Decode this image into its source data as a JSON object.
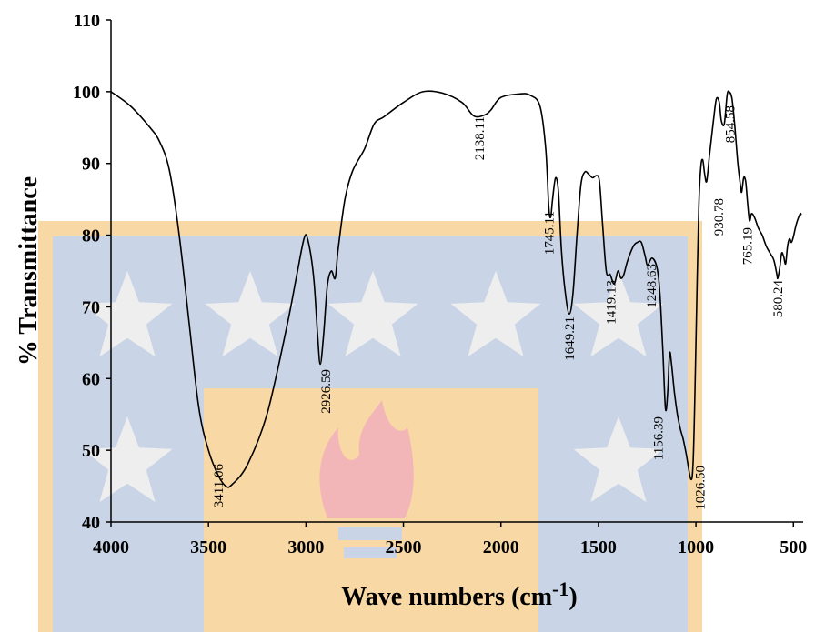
{
  "chart_data": {
    "type": "line",
    "title": "",
    "xlabel": "Wave numbers (cm",
    "xlabel_sup": "-1",
    "xlabel_end": ")",
    "ylabel": "% Transmittance",
    "xlim": [
      4000,
      450
    ],
    "ylim": [
      40,
      110
    ],
    "x_reversed": true,
    "xticks": [
      4000,
      3500,
      3000,
      2500,
      2000,
      1500,
      1000,
      500
    ],
    "yticks": [
      40,
      50,
      60,
      70,
      80,
      90,
      100,
      110
    ],
    "grid": false,
    "legend": "none",
    "line_color": "#000000",
    "series": [
      {
        "points": [
          [
            4000,
            100
          ],
          [
            3900,
            98
          ],
          [
            3800,
            95
          ],
          [
            3750,
            93
          ],
          [
            3700,
            89
          ],
          [
            3650,
            80
          ],
          [
            3600,
            68
          ],
          [
            3550,
            56
          ],
          [
            3500,
            50
          ],
          [
            3450,
            46.5
          ],
          [
            3411,
            45
          ],
          [
            3380,
            45.2
          ],
          [
            3300,
            48
          ],
          [
            3200,
            55
          ],
          [
            3100,
            67
          ],
          [
            3050,
            74
          ],
          [
            3010,
            79.5
          ],
          [
            2990,
            79.3
          ],
          [
            2960,
            74
          ],
          [
            2940,
            66
          ],
          [
            2926.59,
            62
          ],
          [
            2910,
            66
          ],
          [
            2890,
            73
          ],
          [
            2870,
            75
          ],
          [
            2850,
            74
          ],
          [
            2835,
            78
          ],
          [
            2800,
            85
          ],
          [
            2760,
            89
          ],
          [
            2700,
            92
          ],
          [
            2650,
            95.5
          ],
          [
            2600,
            96.5
          ],
          [
            2500,
            98.5
          ],
          [
            2400,
            100
          ],
          [
            2300,
            99.8
          ],
          [
            2200,
            98.5
          ],
          [
            2138.11,
            96.6
          ],
          [
            2080,
            96.8
          ],
          [
            2050,
            97.5
          ],
          [
            2000,
            99.2
          ],
          [
            1900,
            99.7
          ],
          [
            1850,
            99.5
          ],
          [
            1800,
            98
          ],
          [
            1770,
            92
          ],
          [
            1755,
            84
          ],
          [
            1745.11,
            82.5
          ],
          [
            1735,
            85
          ],
          [
            1720,
            88
          ],
          [
            1705,
            86
          ],
          [
            1690,
            78
          ],
          [
            1670,
            72
          ],
          [
            1649.21,
            69
          ],
          [
            1630,
            72
          ],
          [
            1610,
            80
          ],
          [
            1590,
            87
          ],
          [
            1570,
            88.8
          ],
          [
            1550,
            88.5
          ],
          [
            1530,
            88
          ],
          [
            1510,
            88.3
          ],
          [
            1495,
            87.5
          ],
          [
            1480,
            82
          ],
          [
            1460,
            75
          ],
          [
            1440,
            74.5
          ],
          [
            1419.13,
            73.2
          ],
          [
            1400,
            75
          ],
          [
            1385,
            74
          ],
          [
            1370,
            74.5
          ],
          [
            1350,
            76.5
          ],
          [
            1320,
            78.5
          ],
          [
            1300,
            79
          ],
          [
            1280,
            79
          ],
          [
            1260,
            77
          ],
          [
            1248.63,
            75.8
          ],
          [
            1225,
            76.8
          ],
          [
            1200,
            75.5
          ],
          [
            1185,
            72
          ],
          [
            1170,
            64
          ],
          [
            1156.39,
            55.8
          ],
          [
            1145,
            58
          ],
          [
            1135,
            63.5
          ],
          [
            1125,
            62
          ],
          [
            1110,
            58
          ],
          [
            1095,
            55
          ],
          [
            1080,
            53
          ],
          [
            1065,
            51.5
          ],
          [
            1050,
            49.5
          ],
          [
            1026.5,
            46
          ],
          [
            1015,
            48
          ],
          [
            1005,
            58
          ],
          [
            995,
            72
          ],
          [
            985,
            84
          ],
          [
            975,
            89.5
          ],
          [
            965,
            90.5
          ],
          [
            955,
            88.5
          ],
          [
            945,
            87.5
          ],
          [
            930.78,
            91
          ],
          [
            910,
            96
          ],
          [
            895,
            99
          ],
          [
            880,
            98.5
          ],
          [
            870,
            96
          ],
          [
            854.58,
            95.5
          ],
          [
            840,
            99.5
          ],
          [
            830,
            100
          ],
          [
            815,
            99
          ],
          [
            800,
            95
          ],
          [
            785,
            90
          ],
          [
            772,
            87
          ],
          [
            765.19,
            86
          ],
          [
            755,
            88
          ],
          [
            745,
            87.5
          ],
          [
            735,
            84.5
          ],
          [
            725,
            82
          ],
          [
            715,
            83
          ],
          [
            700,
            82.5
          ],
          [
            680,
            81
          ],
          [
            660,
            80
          ],
          [
            640,
            78.5
          ],
          [
            620,
            77.5
          ],
          [
            600,
            76.5
          ],
          [
            585,
            74.5
          ],
          [
            580.24,
            74
          ],
          [
            570,
            75.5
          ],
          [
            560,
            77.5
          ],
          [
            550,
            77
          ],
          [
            540,
            76
          ],
          [
            530,
            78.5
          ],
          [
            520,
            79.5
          ],
          [
            510,
            79
          ],
          [
            500,
            79.8
          ],
          [
            490,
            81
          ],
          [
            480,
            82
          ],
          [
            465,
            83
          ],
          [
            460,
            82.8
          ]
        ]
      }
    ],
    "annotations": [
      {
        "text": "3411.06",
        "x": 3411.06,
        "y": 45
      },
      {
        "text": "2926.59",
        "x": 2926.59,
        "y": 62
      },
      {
        "text": "2138.11",
        "x": 2138.11,
        "y": 96.6
      },
      {
        "text": "1745.11",
        "x": 1745.11,
        "y": 82.5
      },
      {
        "text": "1649.21",
        "x": 1649.21,
        "y": 69
      },
      {
        "text": "1419.13",
        "x": 1419.13,
        "y": 73.2
      },
      {
        "text": "1248.63",
        "x": 1248.63,
        "y": 75.8
      },
      {
        "text": "1156.39",
        "x": 1156.39,
        "y": 55.8
      },
      {
        "text": "1026.50",
        "x": 1026.5,
        "y": 46
      },
      {
        "text": "930.78",
        "x": 930.78,
        "y": 87.5
      },
      {
        "text": "854.58",
        "x": 854.58,
        "y": 95.5
      },
      {
        "text": "765.19",
        "x": 765.19,
        "y": 86
      },
      {
        "text": "580.24",
        "x": 580.24,
        "y": 74
      }
    ]
  },
  "watermark": {
    "description": "university-seal-watermark",
    "colors": {
      "gold": "#f8d8a4",
      "blue": "#c9d5e7",
      "star": "#eeeeee",
      "flame": "#f3b6b8"
    }
  }
}
